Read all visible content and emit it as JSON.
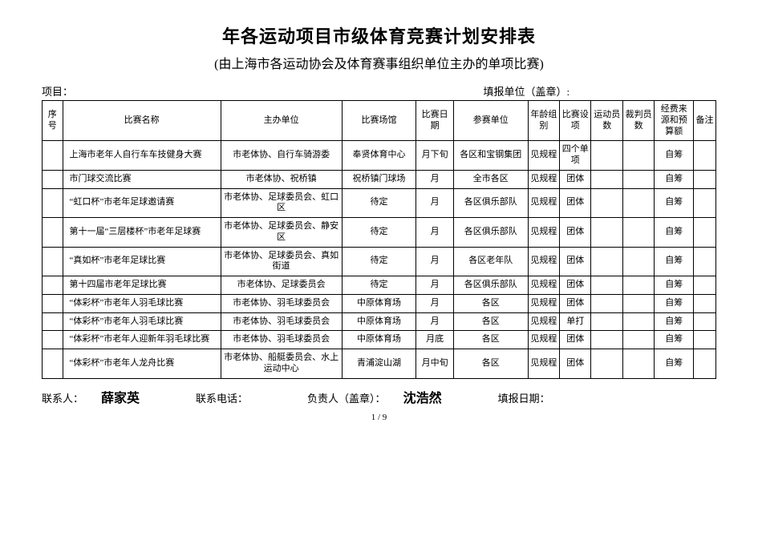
{
  "title": "年各运动项目市级体育竞赛计划安排表",
  "subtitle": "(由上海市各运动协会及体育赛事组织单位主办的单项比赛)",
  "top": {
    "project_label": "项目：",
    "reporter_label": "填报单位（盖章）:"
  },
  "columns": {
    "seq": "序号",
    "name": "比赛名称",
    "host": "主办单位",
    "venue": "比赛场馆",
    "date": "比赛日期",
    "participants": "参赛单位",
    "age": "年龄组别",
    "setting": "比赛设项",
    "athletes": "运动员数",
    "referees": "裁判员数",
    "fund": "经费来源和预算额",
    "note": "备注"
  },
  "rows": [
    {
      "name": "上海市老年人自行车车技健身大赛",
      "host": "市老体协、自行车骑游委",
      "venue": "奉贤体育中心",
      "date": "月下旬",
      "participants": "各区和宝钢集团",
      "age": "见规程",
      "setting": "四个单项",
      "athletes": "",
      "referees": "",
      "fund": "自筹",
      "note": ""
    },
    {
      "name": "市门球交流比赛",
      "host": "市老体协、祝桥镇",
      "venue": "祝桥镇门球场",
      "date": "月",
      "participants": "全市各区",
      "age": "见规程",
      "setting": "团体",
      "athletes": "",
      "referees": "",
      "fund": "自筹",
      "note": ""
    },
    {
      "name": "“虹口杯”市老年足球邀请赛",
      "host": "市老体协、足球委员会、虹口区",
      "venue": "待定",
      "date": "月",
      "participants": "各区俱乐部队",
      "age": "见规程",
      "setting": "团体",
      "athletes": "",
      "referees": "",
      "fund": "自筹",
      "note": ""
    },
    {
      "name": "第十一届“三层楼杯”市老年足球赛",
      "host": "市老体协、足球委员会、静安区",
      "venue": "待定",
      "date": "月",
      "participants": "各区俱乐部队",
      "age": "见规程",
      "setting": "团体",
      "athletes": "",
      "referees": "",
      "fund": "自筹",
      "note": ""
    },
    {
      "name": "“真如杯”市老年足球比赛",
      "host": "市老体协、足球委员会、真如街道",
      "venue": "待定",
      "date": "月",
      "participants": "各区老年队",
      "age": "见规程",
      "setting": "团体",
      "athletes": "",
      "referees": "",
      "fund": "自筹",
      "note": ""
    },
    {
      "name": "第十四届市老年足球比赛",
      "host": "市老体协、足球委员会",
      "venue": "待定",
      "date": "月",
      "participants": "各区俱乐部队",
      "age": "见规程",
      "setting": "团体",
      "athletes": "",
      "referees": "",
      "fund": "自筹",
      "note": ""
    },
    {
      "name": "“体彩杯”市老年人羽毛球比赛",
      "host": "市老体协、羽毛球委员会",
      "venue": "中原体育场",
      "date": "月",
      "participants": "各区",
      "age": "见规程",
      "setting": "团体",
      "athletes": "",
      "referees": "",
      "fund": "自筹",
      "note": ""
    },
    {
      "name": "“体彩杯”市老年人羽毛球比赛",
      "host": "市老体协、羽毛球委员会",
      "venue": "中原体育场",
      "date": "月",
      "participants": "各区",
      "age": "见规程",
      "setting": "单打",
      "athletes": "",
      "referees": "",
      "fund": "自筹",
      "note": ""
    },
    {
      "name": "“体彩杯”市老年人迎新年羽毛球比赛",
      "host": "市老体协、羽毛球委员会",
      "venue": "中原体育场",
      "date": "月底",
      "participants": "各区",
      "age": "见规程",
      "setting": "团体",
      "athletes": "",
      "referees": "",
      "fund": "自筹",
      "note": ""
    },
    {
      "name": "“体彩杯”市老年人龙舟比赛",
      "host": "市老体协、船艇委员会、水上运动中心",
      "venue": "青浦淀山湖",
      "date": "月中旬",
      "participants": "各区",
      "age": "见规程",
      "setting": "团体",
      "athletes": "",
      "referees": "",
      "fund": "自筹",
      "note": ""
    }
  ],
  "bottom": {
    "contact_label": "联系人：",
    "contact_value": "薛家英",
    "phone_label": "联系电话：",
    "owner_label": "负责人（盖章）：",
    "owner_value": "沈浩然",
    "report_date_label": "填报日期："
  },
  "page_number": "1 / 9"
}
